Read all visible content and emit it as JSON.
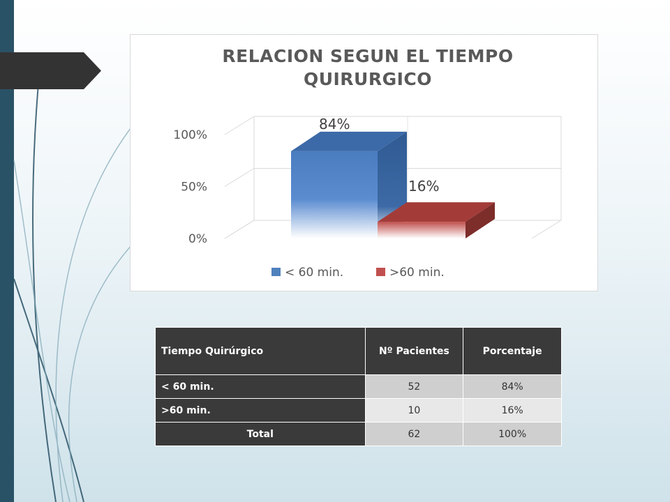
{
  "chart_data": {
    "type": "bar",
    "title_lines": [
      "RELACION SEGUN EL TIEMPO",
      "QUIRURGICO"
    ],
    "categories": [
      "< 60 min.",
      ">60 min."
    ],
    "values": [
      84,
      16
    ],
    "data_labels": [
      "84%",
      "16%"
    ],
    "y_ticks": [
      "0%",
      "50%",
      "100%"
    ],
    "ylim": [
      0,
      100
    ],
    "legend": [
      "< 60 min.",
      ">60 min."
    ],
    "legend_position": "bottom",
    "colors": [
      "#4f81bd",
      "#c0504d"
    ],
    "grid": true
  },
  "table": {
    "headers": [
      "Tiempo Quirúrgico",
      "Nº Pacientes",
      "Porcentaje"
    ],
    "rows": [
      {
        "label": "< 60 min.",
        "pacientes": "52",
        "porcentaje": "84%"
      },
      {
        "label": ">60 min.",
        "pacientes": "10",
        "porcentaje": "16%"
      },
      {
        "label": "Total",
        "pacientes": "62",
        "porcentaje": "100%"
      }
    ]
  },
  "theme": {
    "sidebar_color": "#2a5266",
    "header_color": "#3a3a3a"
  }
}
